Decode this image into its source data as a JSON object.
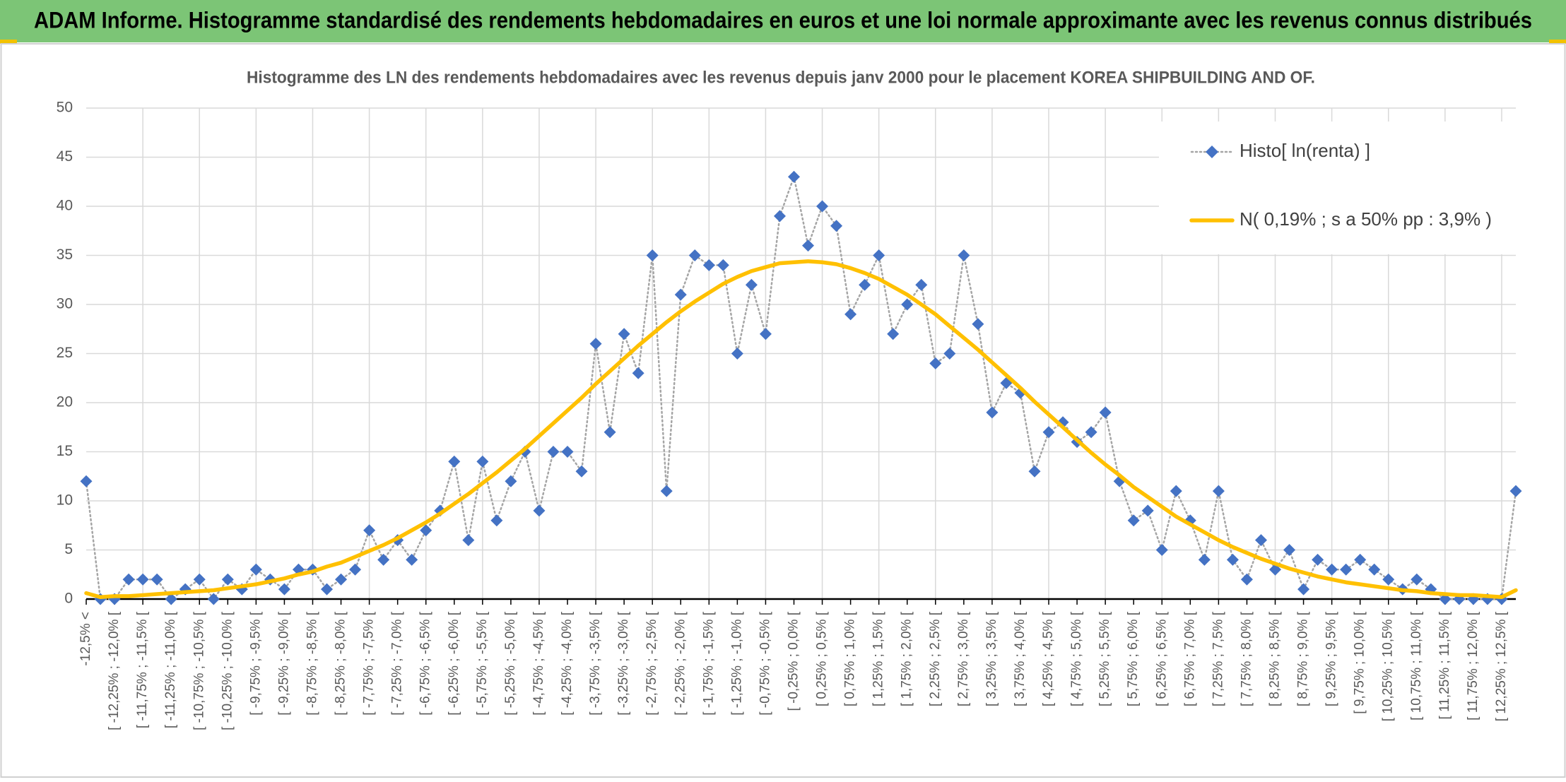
{
  "chart_data": {
    "type": "line",
    "title": "ADAM Informe. Histogramme standardisé des rendements hebdomadaires en euros et une loi normale approximante avec les revenus connus distribués",
    "subtitle": "Histogramme des LN des rendements hebdomadaires avec les revenus depuis janv 2000 pour le placement KOREA SHIPBUILDING AND OF.",
    "categories": [
      "-12,5% <",
      null,
      "[ -12,25% ; -12,0% [",
      null,
      "[ -11,75% ; -11,5% [",
      null,
      "[ -11,25% ; -11,0% [",
      null,
      "[ -10,75% ; -10,5% [",
      null,
      "[ -10,25% ; -10,0% [",
      null,
      "[ -9,75% ; -9,5% [",
      null,
      "[ -9,25% ; -9,0% [",
      null,
      "[ -8,75% ; -8,5% [",
      null,
      "[ -8,25% ; -8,0% [",
      null,
      "[ -7,75% ; -7,5% [",
      null,
      "[ -7,25% ; -7,0% [",
      null,
      "[ -6,75% ; -6,5% [",
      null,
      "[ -6,25% ; -6,0% [",
      null,
      "[ -5,75% ; -5,5% [",
      null,
      "[ -5,25% ; -5,0% [",
      null,
      "[ -4,75% ; -4,5% [",
      null,
      "[ -4,25% ; -4,0% [",
      null,
      "[ -3,75% ; -3,5% [",
      null,
      "[ -3,25% ; -3,0% [",
      null,
      "[ -2,75% ; -2,5% [",
      null,
      "[ -2,25% ; -2,0% [",
      null,
      "[ -1,75% ; -1,5% [",
      null,
      "[ -1,25% ; -1,0% [",
      null,
      "[ -0,75% ; -0,5% [",
      null,
      "[ -0,25% ; 0,0% [",
      null,
      "[ 0,25% ; 0,5% [",
      null,
      "[ 0,75% ; 1,0% [",
      null,
      "[ 1,25% ; 1,5% [",
      null,
      "[ 1,75% ; 2,0% [",
      null,
      "[ 2,25% ; 2,5% [",
      null,
      "[ 2,75% ; 3,0% [",
      null,
      "[ 3,25% ; 3,5% [",
      null,
      "[ 3,75% ; 4,0% [",
      null,
      "[ 4,25% ; 4,5% [",
      null,
      "[ 4,75% ; 5,0% [",
      null,
      "[ 5,25% ; 5,5% [",
      null,
      "[ 5,75% ; 6,0% [",
      null,
      "[ 6,25% ; 6,5% [",
      null,
      "[ 6,75% ; 7,0% [",
      null,
      "[ 7,25% ; 7,5% [",
      null,
      "[ 7,75% ; 8,0% [",
      null,
      "[ 8,25% ; 8,5% [",
      null,
      "[ 8,75% ; 9,0% [",
      null,
      "[ 9,25% ; 9,5% [",
      null,
      "[ 9,75% ; 10,0% [",
      null,
      "[ 10,25% ; 10,5% [",
      null,
      "[ 10,75% ; 11,0% [",
      null,
      "[ 11,25% ; 11,5% [",
      null,
      "[ 11,75% ; 12,0% [",
      null,
      "[ 12,25% ; 12,5% [",
      null
    ],
    "series": [
      {
        "name": "Histo[ ln(renta) ]",
        "color": "#4472c4",
        "line_color": "#a5a5a5",
        "values": [
          12,
          0,
          0,
          2,
          2,
          2,
          0,
          1,
          2,
          0,
          2,
          1,
          3,
          2,
          1,
          3,
          3,
          1,
          2,
          3,
          7,
          4,
          6,
          4,
          7,
          9,
          14,
          6,
          14,
          8,
          12,
          15,
          9,
          15,
          15,
          13,
          26,
          17,
          27,
          23,
          35,
          11,
          31,
          35,
          34,
          34,
          25,
          32,
          27,
          39,
          43,
          36,
          40,
          38,
          29,
          32,
          35,
          27,
          30,
          32,
          24,
          25,
          35,
          28,
          19,
          22,
          21,
          13,
          17,
          18,
          16,
          17,
          19,
          12,
          8,
          9,
          5,
          11,
          8,
          4,
          11,
          4,
          2,
          6,
          3,
          5,
          1,
          4,
          3,
          3,
          4,
          3,
          2,
          1,
          2,
          1,
          0,
          0,
          0,
          0,
          0,
          11
        ]
      },
      {
        "name": "N( 0,19% ; s a 50% pp : 3,9% )",
        "color": "#ffc000",
        "values": [
          0.6,
          0.2,
          0.3,
          0.3,
          0.4,
          0.5,
          0.6,
          0.7,
          0.8,
          0.9,
          1.1,
          1.3,
          1.5,
          1.8,
          2.1,
          2.5,
          2.8,
          3.3,
          3.7,
          4.3,
          4.9,
          5.5,
          6.2,
          7.0,
          7.8,
          8.7,
          9.7,
          10.7,
          11.8,
          12.9,
          14.1,
          15.3,
          16.6,
          17.9,
          19.2,
          20.5,
          21.9,
          23.2,
          24.5,
          25.8,
          27.0,
          28.2,
          29.3,
          30.3,
          31.2,
          32.1,
          32.8,
          33.4,
          33.8,
          34.2,
          34.3,
          34.4,
          34.3,
          34.1,
          33.7,
          33.2,
          32.6,
          31.8,
          31.0,
          30.0,
          29.0,
          27.8,
          26.6,
          25.4,
          24.1,
          22.8,
          21.5,
          20.1,
          18.8,
          17.5,
          16.2,
          14.9,
          13.7,
          12.6,
          11.4,
          10.4,
          9.4,
          8.4,
          7.6,
          6.8,
          6.0,
          5.3,
          4.7,
          4.1,
          3.6,
          3.1,
          2.7,
          2.3,
          2.0,
          1.7,
          1.5,
          1.3,
          1.1,
          0.9,
          0.8,
          0.6,
          0.5,
          0.4,
          0.4,
          0.3,
          0.2,
          0.9
        ]
      }
    ],
    "ylim": [
      0,
      50
    ],
    "yticks": [
      0,
      5,
      10,
      15,
      20,
      25,
      30,
      35,
      40,
      45,
      50
    ],
    "grid": true,
    "legend": "upper right"
  }
}
